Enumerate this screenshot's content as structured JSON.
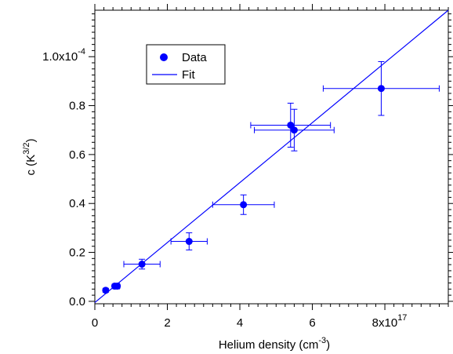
{
  "chart_data": {
    "type": "scatter",
    "xlabel": "Helium density (cm",
    "xlabel_sup": "-3",
    "xlabel_close": ")",
    "ylabel": "c  (K",
    "ylabel_sup": "3/2",
    "ylabel_close": ")",
    "xlim": [
      0,
      9.75
    ],
    "ylim": [
      -0.01,
      1.19
    ],
    "x_unit_note": "x values in units of 1e17 cm^-3; y values in units of 1e-4 K^(3/2)",
    "x_ticks": [
      {
        "value": 0,
        "label": "0"
      },
      {
        "value": 2,
        "label": "2"
      },
      {
        "value": 4,
        "label": "4"
      },
      {
        "value": 6,
        "label": "6"
      },
      {
        "value": 8,
        "label": "8x10",
        "sup": "17"
      }
    ],
    "y_ticks": [
      {
        "value": 0.0,
        "label": "0.0"
      },
      {
        "value": 0.2,
        "label": "0.2"
      },
      {
        "value": 0.4,
        "label": "0.4"
      },
      {
        "value": 0.6,
        "label": "0.6"
      },
      {
        "value": 0.8,
        "label": "0.8"
      },
      {
        "value": 1.0,
        "label": "1.0x10",
        "sup": "-4"
      }
    ],
    "series": [
      {
        "name": "Data",
        "color": "#0000ff",
        "points": [
          {
            "x": 0.3,
            "y": 0.045,
            "xerr": 0.03,
            "yerr": 0.008
          },
          {
            "x": 0.55,
            "y": 0.062,
            "xerr": 0.05,
            "yerr": 0.008
          },
          {
            "x": 0.62,
            "y": 0.062,
            "xerr": 0.06,
            "yerr": 0.008
          },
          {
            "x": 1.3,
            "y": 0.152,
            "xerr": 0.5,
            "yerr": 0.02
          },
          {
            "x": 2.6,
            "y": 0.245,
            "xerr": 0.5,
            "yerr": 0.035
          },
          {
            "x": 4.1,
            "y": 0.395,
            "xerr": 0.85,
            "yerr": 0.04
          },
          {
            "x": 5.4,
            "y": 0.72,
            "xerr": 1.1,
            "yerr": 0.09
          },
          {
            "x": 5.5,
            "y": 0.7,
            "xerr": 1.1,
            "yerr": 0.085
          },
          {
            "x": 7.9,
            "y": 0.87,
            "xerr": 1.6,
            "yerr": 0.11
          }
        ]
      },
      {
        "name": "Fit",
        "color": "#0000ff",
        "type": "line",
        "points": [
          {
            "x": 0.0,
            "y": -0.005
          },
          {
            "x": 9.75,
            "y": 1.19
          }
        ]
      }
    ],
    "legend": {
      "placement": "top-left"
    },
    "grid": false
  }
}
